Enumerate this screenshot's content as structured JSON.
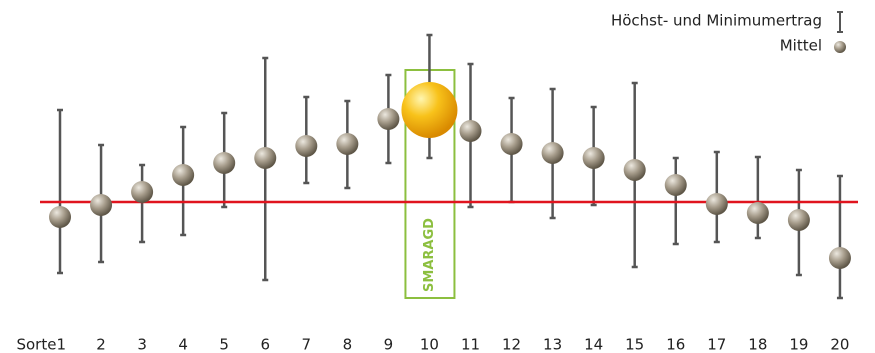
{
  "chart_data": {
    "type": "errorbar",
    "categories": [
      "Sorte1",
      "2",
      "3",
      "4",
      "5",
      "6",
      "7",
      "8",
      "9",
      "10",
      "11",
      "12",
      "13",
      "14",
      "15",
      "16",
      "17",
      "18",
      "19",
      "20"
    ],
    "series": [
      {
        "name": "Mittel",
        "color": "#8a8170",
        "values": [
          -15,
          -3,
          10,
          27,
          39,
          44,
          56,
          58,
          83,
          92,
          71,
          58,
          49,
          44,
          32,
          17,
          -2,
          -11,
          -18,
          -56
        ]
      },
      {
        "name": "Höchst- und Minimumertrag",
        "color": "#555555",
        "max": [
          92,
          57,
          37,
          75,
          89,
          144,
          105,
          101,
          127,
          167,
          138,
          104,
          113,
          95,
          119,
          44,
          50,
          45,
          32,
          26
        ],
        "min": [
          -71,
          -60,
          -40,
          -33,
          -5,
          -78,
          19,
          14,
          39,
          44,
          -5,
          0,
          -16,
          -3,
          -65,
          -42,
          -40,
          -36,
          -73,
          -96
        ]
      }
    ],
    "highlight": {
      "label": "SMARAGD",
      "category_index": 9,
      "color": "#f2b800",
      "box_color": "#8cbf3f"
    },
    "reference_line": {
      "value": 0,
      "color": "#e0141e"
    },
    "ylim": [
      -110,
      180
    ]
  }
}
